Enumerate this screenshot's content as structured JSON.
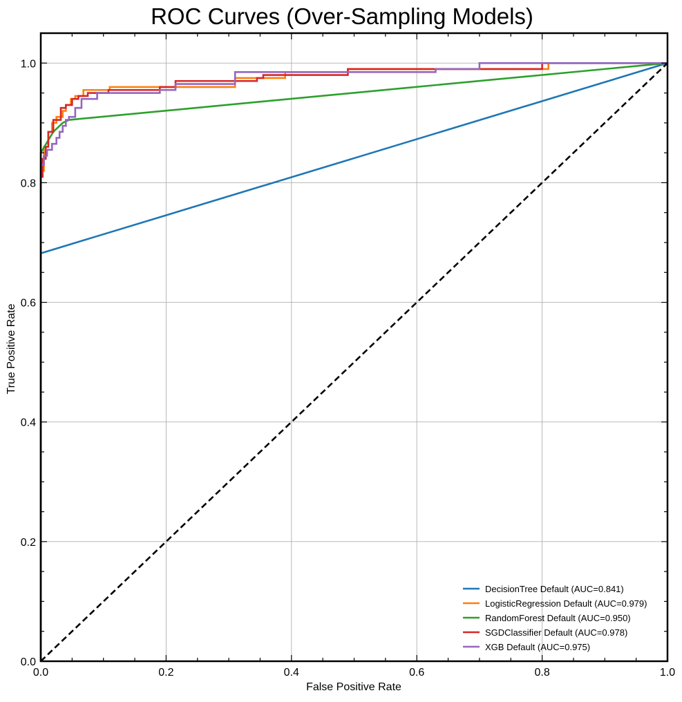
{
  "chart_data": {
    "type": "line",
    "title": "ROC Curves (Over-Sampling Models)",
    "xlabel": "False Positive Rate",
    "ylabel": "True Positive Rate",
    "xlim": [
      0,
      1
    ],
    "ylim": [
      0,
      1.05
    ],
    "x_ticks": [
      "0.0",
      "0.2",
      "0.4",
      "0.6",
      "0.8",
      "1.0"
    ],
    "y_ticks": [
      "0.0",
      "0.2",
      "0.4",
      "0.6",
      "0.8",
      "1.0"
    ],
    "grid": true,
    "legend_position": "lower right",
    "series": [
      {
        "name": "DecisionTree Default (AUC=0.841)",
        "color": "#1f77b4",
        "x": [
          0,
          0,
          1
        ],
        "y": [
          0,
          0.682,
          1
        ]
      },
      {
        "name": "LogisticRegression Default (AUC=0.979)",
        "color": "#ff7f0e",
        "x": [
          0,
          0,
          0.005,
          0.005,
          0.012,
          0.012,
          0.018,
          0.018,
          0.025,
          0.025,
          0.035,
          0.035,
          0.04,
          0.04,
          0.048,
          0.048,
          0.055,
          0.055,
          0.068,
          0.068,
          0.11,
          0.11,
          0.31,
          0.31,
          0.39,
          0.39,
          0.49,
          0.49,
          0.81,
          0.81,
          1
        ],
        "y": [
          0,
          0.82,
          0.82,
          0.86,
          0.86,
          0.885,
          0.885,
          0.9,
          0.9,
          0.91,
          0.91,
          0.92,
          0.92,
          0.93,
          0.93,
          0.94,
          0.94,
          0.945,
          0.945,
          0.955,
          0.955,
          0.96,
          0.96,
          0.975,
          0.975,
          0.985,
          0.985,
          0.99,
          0.99,
          1,
          1
        ]
      },
      {
        "name": "RandomForest Default (AUC=0.950)",
        "color": "#2ca02c",
        "x": [
          0,
          0,
          0.02,
          0.035,
          0.045,
          1
        ],
        "y": [
          0,
          0.85,
          0.885,
          0.9,
          0.905,
          1
        ]
      },
      {
        "name": "SGDClassifier Default (AUC=0.978)",
        "color": "#d62728",
        "x": [
          0,
          0,
          0.003,
          0.003,
          0.008,
          0.008,
          0.012,
          0.012,
          0.02,
          0.02,
          0.032,
          0.032,
          0.04,
          0.04,
          0.05,
          0.05,
          0.06,
          0.06,
          0.075,
          0.075,
          0.108,
          0.108,
          0.19,
          0.19,
          0.215,
          0.215,
          0.345,
          0.345,
          0.355,
          0.355,
          0.49,
          0.49,
          0.8,
          0.8,
          1
        ],
        "y": [
          0,
          0.81,
          0.81,
          0.84,
          0.84,
          0.86,
          0.86,
          0.885,
          0.885,
          0.905,
          0.905,
          0.925,
          0.925,
          0.93,
          0.93,
          0.94,
          0.94,
          0.945,
          0.945,
          0.95,
          0.95,
          0.955,
          0.955,
          0.96,
          0.96,
          0.97,
          0.97,
          0.975,
          0.975,
          0.98,
          0.98,
          0.99,
          0.99,
          1,
          1
        ]
      },
      {
        "name": "XGB Default (AUC=0.975)",
        "color": "#9467bd",
        "x": [
          0,
          0,
          0.005,
          0.005,
          0.01,
          0.01,
          0.018,
          0.018,
          0.025,
          0.025,
          0.03,
          0.03,
          0.035,
          0.035,
          0.04,
          0.04,
          0.045,
          0.045,
          0.055,
          0.055,
          0.065,
          0.065,
          0.09,
          0.09,
          0.19,
          0.19,
          0.215,
          0.215,
          0.31,
          0.31,
          0.63,
          0.63,
          0.7,
          0.7,
          1
        ],
        "y": [
          0,
          0.83,
          0.83,
          0.845,
          0.845,
          0.855,
          0.855,
          0.865,
          0.865,
          0.875,
          0.875,
          0.885,
          0.885,
          0.895,
          0.895,
          0.905,
          0.905,
          0.91,
          0.91,
          0.925,
          0.925,
          0.94,
          0.94,
          0.95,
          0.95,
          0.955,
          0.955,
          0.965,
          0.965,
          0.985,
          0.985,
          0.99,
          0.99,
          1,
          1
        ]
      },
      {
        "name": "",
        "color": "#000000",
        "dashed": true,
        "x": [
          0,
          1
        ],
        "y": [
          0,
          1
        ]
      }
    ]
  }
}
